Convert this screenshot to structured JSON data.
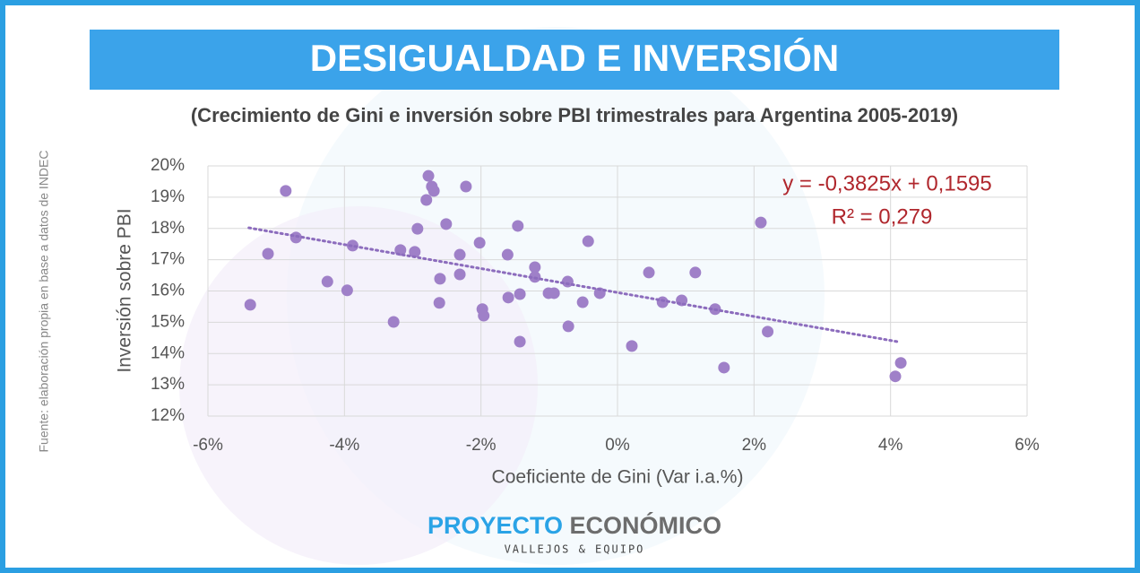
{
  "chart_data": {
    "type": "scatter",
    "title": "DESIGUALDAD E INVERSIÓN",
    "subtitle": "(Crecimiento de Gini e inversión sobre PBI trimestrales para Argentina 2005-2019)",
    "x_label": "Coeficiente de Gini (Var i.a.%)",
    "y_label": "Inversión sobre PBI",
    "source": "Fuente: elaboración propia en base a datos de INDEC",
    "annotations": [
      "y = -0,3825x + 0,1595",
      "R² = 0,279"
    ],
    "annotation_color": "#b0272d",
    "color": "#9f80c8",
    "x": [
      -5.38,
      -5.12,
      -4.86,
      -4.71,
      -4.25,
      -3.96,
      -3.88,
      -3.28,
      -3.18,
      -2.97,
      -2.93,
      -2.8,
      -2.77,
      -2.72,
      -2.69,
      -2.61,
      -2.6,
      -2.51,
      -2.31,
      -2.31,
      -2.22,
      -2.02,
      -1.98,
      -1.96,
      -1.61,
      -1.6,
      -1.46,
      -1.43,
      -1.43,
      -1.21,
      -1.21,
      -1.01,
      -0.93,
      -0.73,
      -0.72,
      -0.51,
      -0.43,
      -0.26,
      0.21,
      0.46,
      0.66,
      0.94,
      1.14,
      1.43,
      1.56,
      2.1,
      2.2,
      4.07,
      4.15
    ],
    "values": [
      15.56,
      17.19,
      19.2,
      17.71,
      16.3,
      16.02,
      17.45,
      15.01,
      17.31,
      17.25,
      17.99,
      18.91,
      19.68,
      19.34,
      19.2,
      15.62,
      16.39,
      18.14,
      16.53,
      17.16,
      19.34,
      17.54,
      15.42,
      15.21,
      17.16,
      15.79,
      18.08,
      15.9,
      14.38,
      16.76,
      16.45,
      15.93,
      15.93,
      16.3,
      14.87,
      15.64,
      17.59,
      15.93,
      14.24,
      16.59,
      15.64,
      15.7,
      16.59,
      15.42,
      13.55,
      18.19,
      14.7,
      13.27,
      13.7
    ],
    "trendline": {
      "x": [
        -5.4,
        4.1
      ],
      "values": [
        18.02,
        14.38
      ],
      "color": "#8c6cbd"
    },
    "xlim": [
      -6,
      6
    ],
    "xticks": [
      {
        "value": -6,
        "label": "-6%"
      },
      {
        "value": -4,
        "label": "-4%"
      },
      {
        "value": -2,
        "label": "-2%"
      },
      {
        "value": 0,
        "label": "0%"
      },
      {
        "value": 2,
        "label": "2%"
      },
      {
        "value": 4,
        "label": "4%"
      },
      {
        "value": 6,
        "label": "6%"
      }
    ],
    "ylim": [
      12,
      20
    ],
    "yticks": [
      {
        "value": 12,
        "label": "12%"
      },
      {
        "value": 13,
        "label": "13%"
      },
      {
        "value": 14,
        "label": "14%"
      },
      {
        "value": 15,
        "label": "15%"
      },
      {
        "value": 16,
        "label": "16%"
      },
      {
        "value": 17,
        "label": "17%"
      },
      {
        "value": 18,
        "label": "18%"
      },
      {
        "value": 19,
        "label": "19%"
      },
      {
        "value": 20,
        "label": "20%"
      }
    ],
    "grid": true
  },
  "logo": {
    "brand_1": "PROYECTO",
    "brand_2": "ECONÓMICO",
    "tagline": "VALLEJOS & EQUIPO"
  }
}
